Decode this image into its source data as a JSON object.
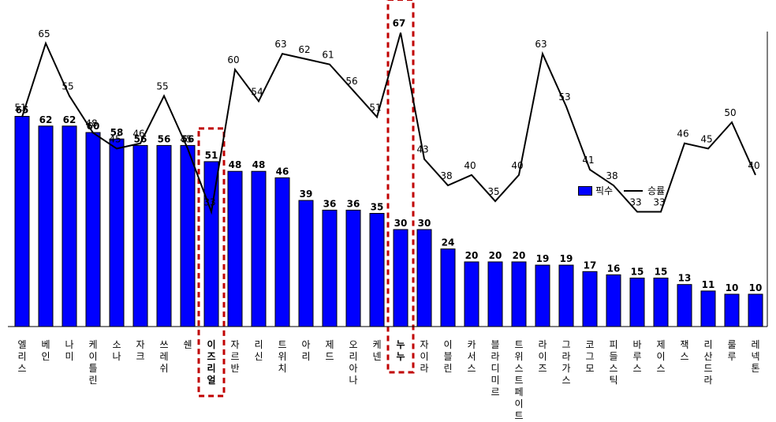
{
  "chart_data": {
    "type": "bar",
    "categories": [
      "엘리스",
      "베인",
      "나미",
      "케이틀린",
      "소나",
      "자크",
      "쓰레쉬",
      "쉔",
      "이즈리얼",
      "자르반",
      "리신",
      "트위치",
      "아리",
      "제드",
      "오리아나",
      "케넨",
      "누누",
      "자이라",
      "이블린",
      "카서스",
      "블라디미르",
      "트위스트페이트",
      "라이즈",
      "그라가스",
      "코그모",
      "피들스틱",
      "바루스",
      "제이스",
      "잭스",
      "리산드라",
      "룰루",
      "레넥톤"
    ],
    "series": [
      {
        "name": "픽수",
        "type": "bar",
        "color": "#0000ff",
        "values": [
          65,
          62,
          62,
          60,
          58,
          56,
          56,
          56,
          51,
          48,
          48,
          46,
          39,
          36,
          36,
          35,
          30,
          30,
          24,
          20,
          20,
          20,
          19,
          19,
          17,
          16,
          15,
          15,
          13,
          11,
          10,
          10
        ]
      },
      {
        "name": "승률",
        "type": "line",
        "color": "#000000",
        "values": [
          51,
          65,
          55,
          48,
          45,
          46,
          55,
          45,
          33,
          60,
          54,
          63,
          62,
          61,
          56,
          51,
          67,
          43,
          38,
          40,
          35,
          40,
          63,
          53,
          41,
          38,
          33,
          33,
          46,
          45,
          50,
          40
        ]
      }
    ],
    "highlighted": [
      "이즈리얼",
      "누누"
    ],
    "legend_position": "right",
    "grid": false
  }
}
